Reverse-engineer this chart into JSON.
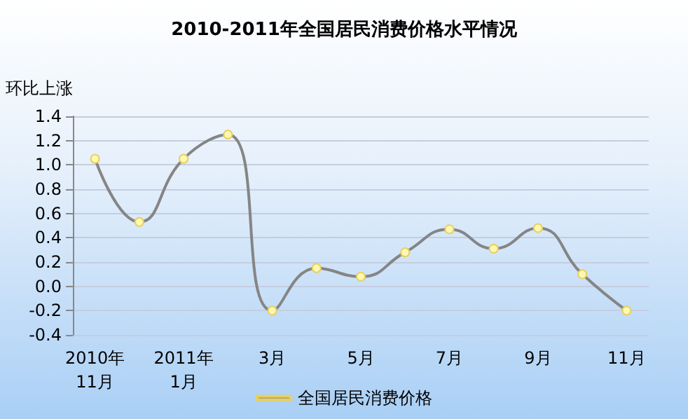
{
  "chart_data": {
    "type": "line",
    "title": "2010-2011年全国居民消费价格水平情况",
    "ylabel": "环比上涨",
    "categories": [
      "2010年\n11月",
      null,
      "2011年\n1月",
      null,
      "3月",
      null,
      "5月",
      null,
      "7月",
      null,
      "9月",
      null,
      "11月"
    ],
    "series": [
      {
        "name": "全国居民消费价格",
        "color": "#858585",
        "values": [
          1.05,
          0.53,
          1.05,
          1.25,
          -0.2,
          0.15,
          0.08,
          0.28,
          0.47,
          0.31,
          0.48,
          0.1,
          -0.2
        ]
      }
    ],
    "ylim": [
      -0.4,
      1.4
    ],
    "yticks": [
      -0.4,
      -0.2,
      {
        "value": 0,
        "label": "0.0"
      },
      0.2,
      0.4,
      0.6,
      0.8,
      {
        "value": 1,
        "label": "1.0"
      },
      1.2,
      1.4
    ],
    "grid": "y",
    "legend": "bottom",
    "marker": "circle",
    "line_style": "solid"
  }
}
